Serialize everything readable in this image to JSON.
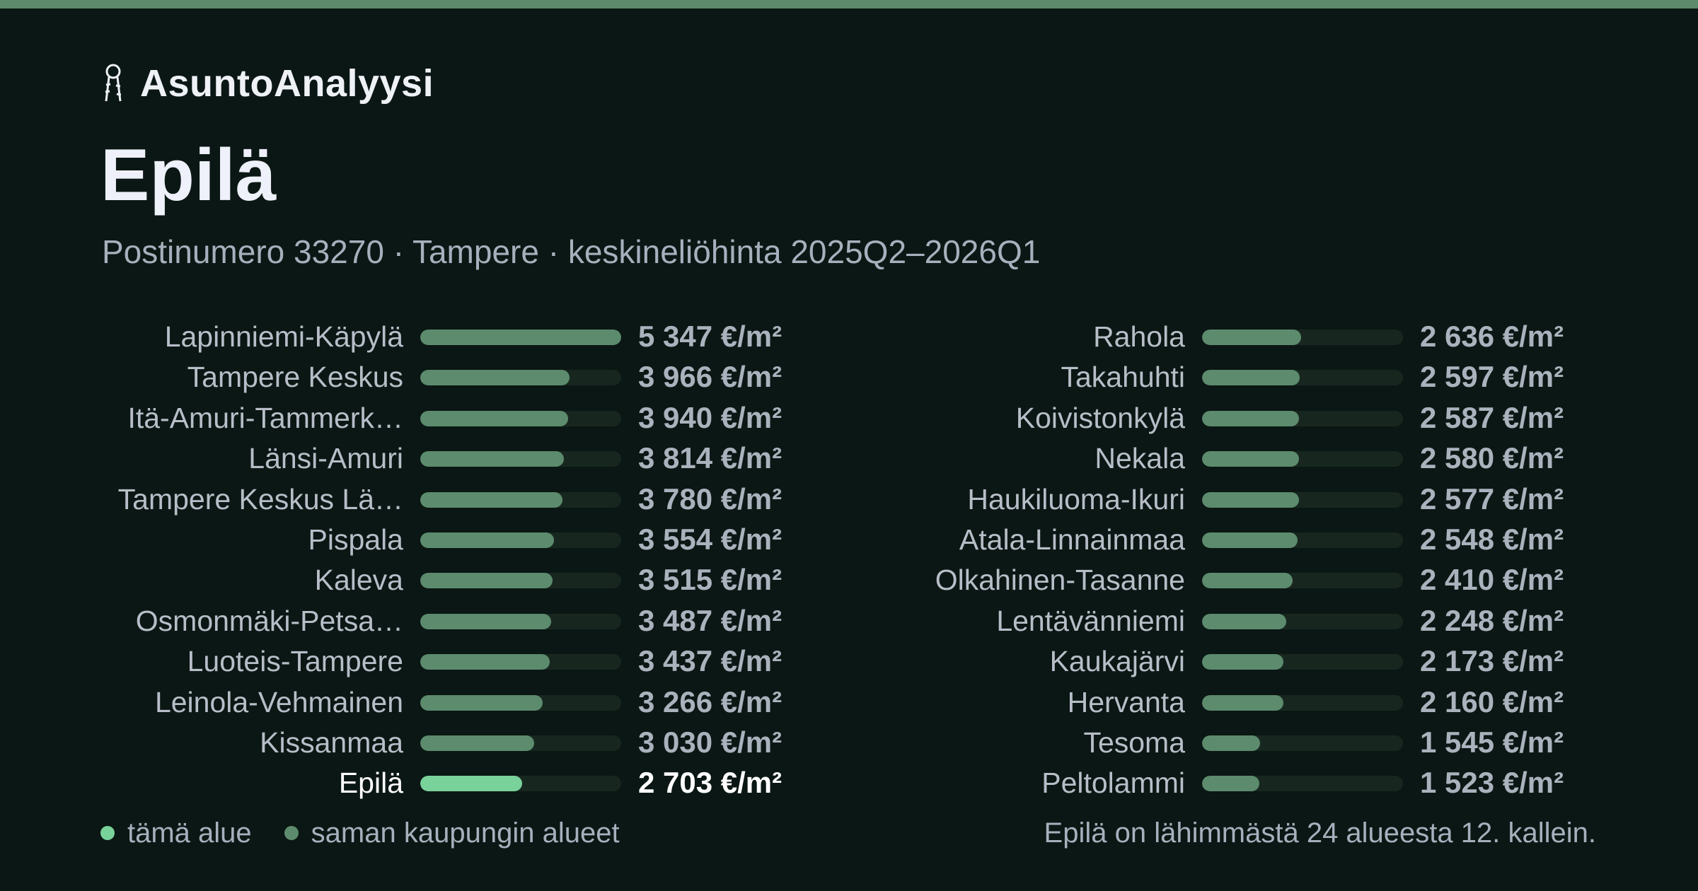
{
  "brand": {
    "name": "AsuntoAnalyysi",
    "icon": "keys-icon"
  },
  "page": {
    "title": "Epilä",
    "subtitle": "Postinumero 33270 · Tampere · keskineliöhinta 2025Q2–2026Q1"
  },
  "colors": {
    "background": "#0b1714",
    "top_accent": "#5d8a6b",
    "bar_default": "#5c8b6d",
    "bar_highlight": "#79d29a",
    "bar_track": "#17271f"
  },
  "legend": {
    "this_area": "tämä alue",
    "same_city": "saman kaupungin alueet"
  },
  "rank_text": "Epilä on lähimmästä 24 alueesta 12. kallein.",
  "chart_data": {
    "type": "bar",
    "orientation": "horizontal",
    "unit": "€/m²",
    "highlight": "Epilä",
    "xlim": [
      0,
      5347
    ],
    "categories": [
      "Lapinniemi-Käpylä",
      "Tampere Keskus",
      "Itä-Amuri-Tammerk…",
      "Länsi-Amuri",
      "Tampere Keskus Lä…",
      "Pispala",
      "Kaleva",
      "Osmonmäki-Petsa…",
      "Luoteis-Tampere",
      "Leinola-Vehmainen",
      "Kissanmaa",
      "Epilä",
      "Rahola",
      "Takahuhti",
      "Koivistonkylä",
      "Nekala",
      "Haukiluoma-Ikuri",
      "Atala-Linnainmaa",
      "Olkahinen-Tasanne",
      "Lentävänniemi",
      "Kaukajärvi",
      "Hervanta",
      "Tesoma",
      "Peltolammi"
    ],
    "values": [
      5347,
      3966,
      3940,
      3814,
      3780,
      3554,
      3515,
      3487,
      3437,
      3266,
      3030,
      2703,
      2636,
      2597,
      2587,
      2580,
      2577,
      2548,
      2410,
      2248,
      2173,
      2160,
      1545,
      1523
    ],
    "value_labels": [
      "5 347 €/m²",
      "3 966 €/m²",
      "3 940 €/m²",
      "3 814 €/m²",
      "3 780 €/m²",
      "3 554 €/m²",
      "3 515 €/m²",
      "3 487 €/m²",
      "3 437 €/m²",
      "3 266 €/m²",
      "3 030 €/m²",
      "2 703 €/m²",
      "2 636 €/m²",
      "2 597 €/m²",
      "2 587 €/m²",
      "2 580 €/m²",
      "2 577 €/m²",
      "2 548 €/m²",
      "2 410 €/m²",
      "2 248 €/m²",
      "2 173 €/m²",
      "2 160 €/m²",
      "1 545 €/m²",
      "1 523 €/m²"
    ]
  }
}
